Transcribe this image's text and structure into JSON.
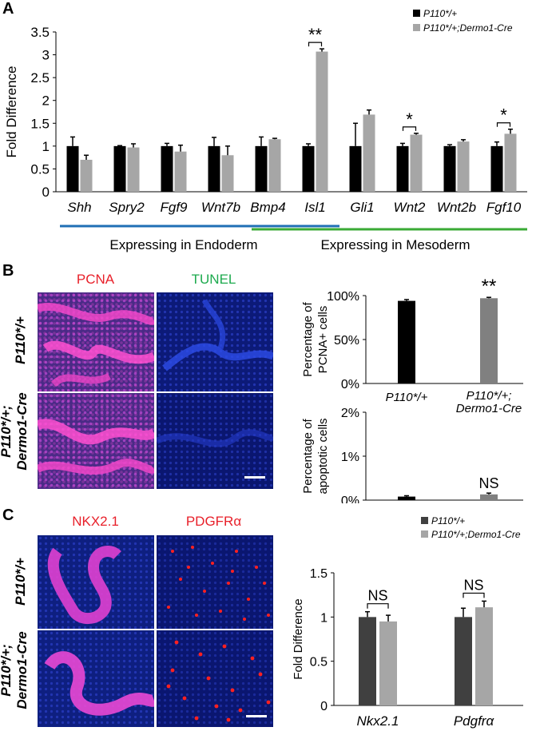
{
  "panels": {
    "a": "A",
    "b": "B",
    "c": "C"
  },
  "chart_a": {
    "type": "bar",
    "ylabel": "Fold Difference",
    "ylim": [
      0,
      3.5
    ],
    "yticks": [
      "0",
      "0.5",
      "1",
      "1.5",
      "2",
      "2.5",
      "3",
      "3.5"
    ],
    "categories": [
      "Shh",
      "Spry2",
      "Fgf9",
      "Wnt7b",
      "Bmp4",
      "Isl1",
      "Gli1",
      "Wnt2",
      "Wnt2b",
      "Fgf10"
    ],
    "series": [
      {
        "name": "P110*/+",
        "color": "#000000",
        "values": [
          1.0,
          1.0,
          1.0,
          1.0,
          1.0,
          1.0,
          1.0,
          1.0,
          1.0,
          1.0
        ],
        "errors": [
          0.2,
          0.01,
          0.06,
          0.19,
          0.2,
          0.05,
          0.5,
          0.06,
          0.03,
          0.09
        ]
      },
      {
        "name": "P110*/+;Dermo1-Cre",
        "color": "#a6a6a6",
        "values": [
          0.7,
          0.97,
          0.88,
          0.8,
          1.15,
          3.07,
          1.69,
          1.25,
          1.1,
          1.27
        ],
        "errors": [
          0.1,
          0.08,
          0.14,
          0.2,
          0.02,
          0.06,
          0.1,
          0.03,
          0.04,
          0.1
        ]
      }
    ],
    "significance": [
      {
        "category": "Isl1",
        "label": "**"
      },
      {
        "category": "Wnt2",
        "label": "*"
      },
      {
        "category": "Fgf10",
        "label": "*"
      }
    ],
    "groups": [
      {
        "label": "Expressing in Endoderm",
        "color": "#1f6fb5"
      },
      {
        "label": "Expressing in Mesoderm",
        "color": "#3aaa35"
      }
    ]
  },
  "panel_b": {
    "stain_pcna": "PCNA",
    "stain_tunel": "TUNEL",
    "row1": "P110*/+",
    "row2_line1": "P110*/+;",
    "row2_line2": "Dermo1-Cre"
  },
  "chart_b1": {
    "type": "bar",
    "ylabel_line1": "Percentage of",
    "ylabel_line2": "PCNA+ cells",
    "yticks": [
      "0%",
      "50%",
      "100%"
    ],
    "ylim": [
      0,
      100
    ],
    "categories": [
      "P110*/+",
      "P110*/+;\nDermo1-Cre"
    ],
    "cat1": "P110*/+",
    "cat2_line1": "P110*/+;",
    "cat2_line2": "Dermo1-Cre",
    "values": [
      94,
      97
    ],
    "errors": [
      1.5,
      1
    ],
    "colors": [
      "#000000",
      "#808080"
    ],
    "significance": "**"
  },
  "chart_b2": {
    "type": "bar",
    "ylabel_line1": "Percentage of",
    "ylabel_line2": "apoptotic cells",
    "yticks": [
      "0%",
      "1%",
      "2%"
    ],
    "ylim": [
      0,
      2
    ],
    "categories": [
      "P110*/+",
      "P110*/+;\nDermo1-Cre"
    ],
    "cat1": "P110*/+",
    "cat2_line1": "P110*/+;",
    "cat2_line2": "Dermo1-Cre",
    "values": [
      0.08,
      0.13
    ],
    "errors": [
      0.02,
      0.03
    ],
    "colors": [
      "#000000",
      "#808080"
    ],
    "significance": "NS"
  },
  "panel_c": {
    "stain_nkx": "NKX2.1",
    "stain_pdgfr": "PDGFRα",
    "row1": "P110*/+",
    "row2_line1": "P110*/+;",
    "row2_line2": "Dermo1-Cre"
  },
  "chart_c": {
    "type": "bar",
    "ylabel": "Fold Difference",
    "ylim": [
      0,
      1.5
    ],
    "yticks": [
      "0",
      "0.5",
      "1",
      "1.5"
    ],
    "categories": [
      "Nkx2.1",
      "Pdgfrα"
    ],
    "series": [
      {
        "name": "P110*/+",
        "color": "#404040",
        "values": [
          1.0,
          1.0
        ],
        "errors": [
          0.06,
          0.1
        ]
      },
      {
        "name": "P110*/+;Dermo1-Cre",
        "color": "#a6a6a6",
        "values": [
          0.95,
          1.11
        ],
        "errors": [
          0.07,
          0.07
        ]
      }
    ],
    "significance": [
      "NS",
      "NS"
    ]
  }
}
